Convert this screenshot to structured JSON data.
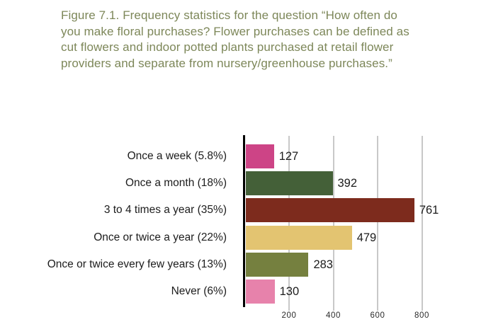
{
  "title": {
    "lines": [
      "Figure 7.1. Frequency statistics for the question “How often do",
      "you make floral purchases? Flower purchases can be defined as",
      "cut flowers and indoor potted plants purchased at retail flower",
      "providers and separate from nursery/greenhouse purchases.”"
    ],
    "color": "#7d8759"
  },
  "colors": {
    "background": "#ffffff",
    "axis": "#000000",
    "gridline": "#c8c8c8",
    "label_text": "#1c1c1c",
    "tick_text": "#2a2a2a"
  },
  "chart_data": {
    "type": "bar",
    "orientation": "horizontal",
    "categories": [
      "Once a week (5.8%)",
      "Once a month (18%)",
      "3 to 4 times a year (35%)",
      "Once or twice a year (22%)",
      "Once or twice every few years (13%)",
      "Never (6%)"
    ],
    "values": [
      127,
      392,
      761,
      479,
      283,
      130
    ],
    "percentages": [
      "5.8%",
      "18%",
      "35%",
      "22%",
      "13%",
      "6%"
    ],
    "value_labels": [
      "127",
      "392",
      "761",
      "479",
      "283",
      "130"
    ],
    "bar_colors": [
      "#cd4486",
      "#446038",
      "#7d2b1d",
      "#e3c471",
      "#75803f",
      "#e782ab"
    ],
    "xticks": [
      200,
      400,
      600,
      800
    ],
    "xtick_labels": [
      "200",
      "400",
      "600",
      "800"
    ],
    "xlim": [
      0,
      1000
    ],
    "grid": true,
    "legend": false,
    "title": "",
    "xlabel": "",
    "ylabel": ""
  }
}
